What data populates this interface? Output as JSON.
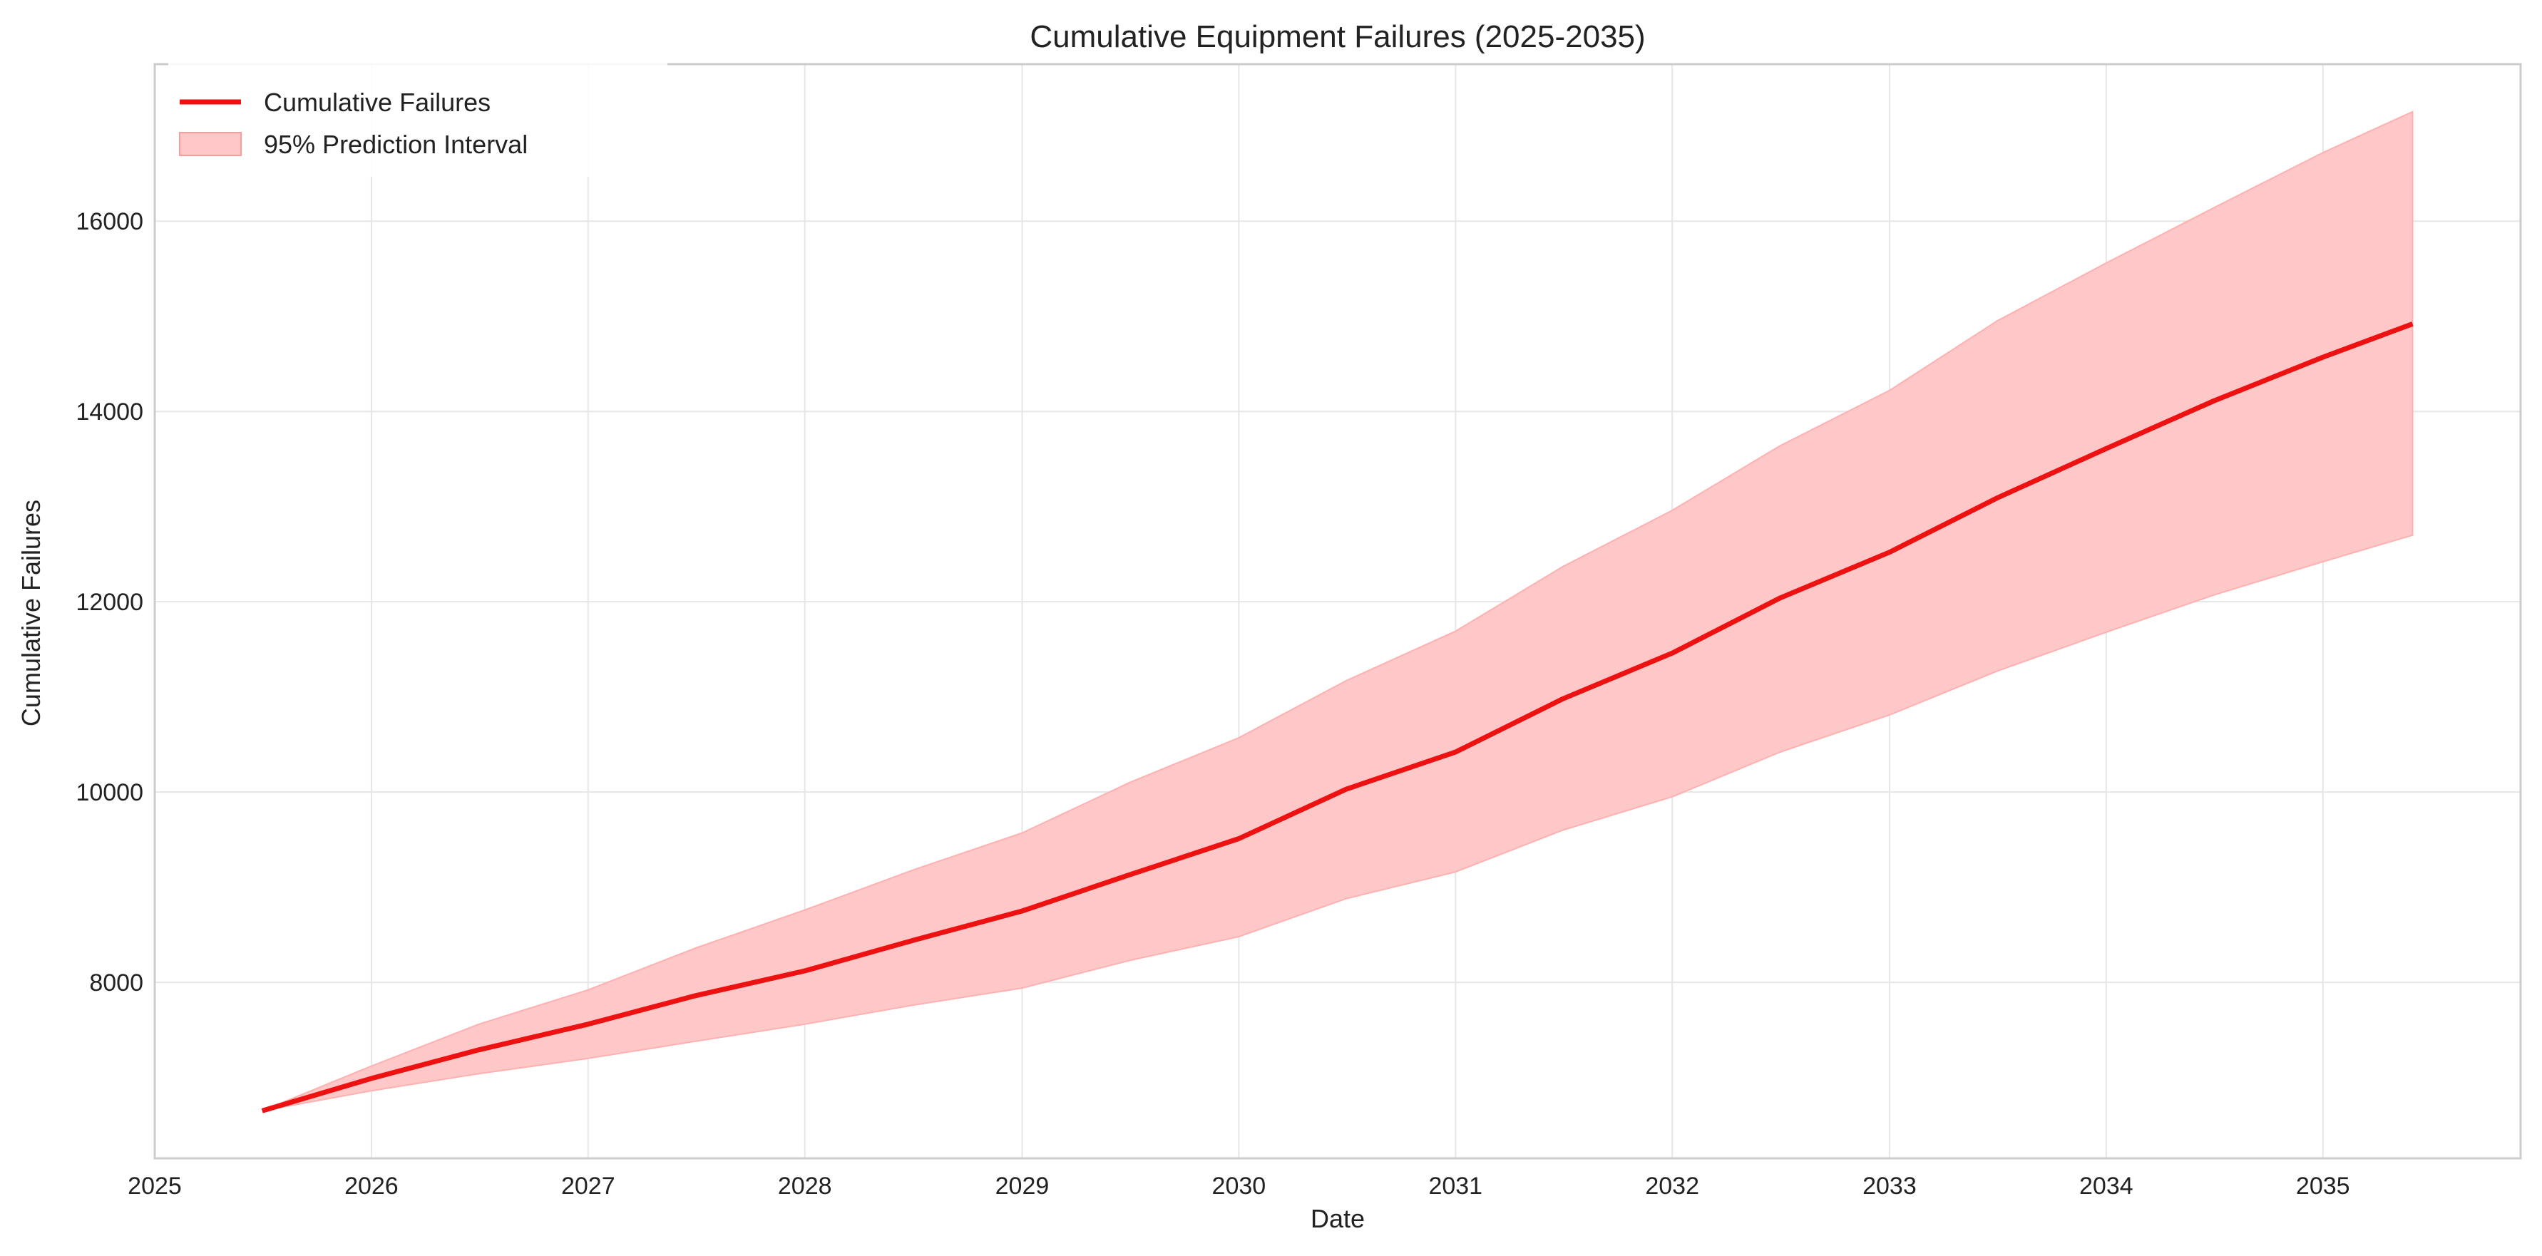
{
  "chart_data": {
    "type": "area",
    "title": "Cumulative Equipment Failures (2025-2035)",
    "xlabel": "Date",
    "ylabel": "Cumulative Failures",
    "xlim": [
      "2025-01-01",
      "2035-11-30"
    ],
    "ylim": [
      6150,
      17650
    ],
    "x_ticks": [
      {
        "label": "2025",
        "date": "2025-01-01"
      },
      {
        "label": "2026",
        "date": "2026-01-01"
      },
      {
        "label": "2027",
        "date": "2027-01-01"
      },
      {
        "label": "2028",
        "date": "2028-01-01"
      },
      {
        "label": "2029",
        "date": "2029-01-01"
      },
      {
        "label": "2030",
        "date": "2030-01-01"
      },
      {
        "label": "2031",
        "date": "2031-01-01"
      },
      {
        "label": "2032",
        "date": "2032-01-01"
      },
      {
        "label": "2033",
        "date": "2033-01-01"
      },
      {
        "label": "2034",
        "date": "2034-01-01"
      },
      {
        "label": "2035",
        "date": "2035-01-01"
      }
    ],
    "y_ticks": [
      8000,
      10000,
      12000,
      14000,
      16000
    ],
    "grid": true,
    "legend_position": "top-left",
    "legend": [
      {
        "label": "Cumulative Failures",
        "kind": "line",
        "color": "#ee1111"
      },
      {
        "label": "95% Prediction Interval",
        "kind": "band",
        "color": "#ffc8c8"
      }
    ],
    "series": [
      {
        "name": "Cumulative Failures",
        "color": "#ee1111",
        "points": [
          [
            "2025-07-01",
            6650
          ],
          [
            "2026-01-01",
            6990
          ],
          [
            "2026-07-01",
            7290
          ],
          [
            "2027-01-01",
            7560
          ],
          [
            "2027-07-01",
            7860
          ],
          [
            "2028-01-01",
            8120
          ],
          [
            "2028-07-01",
            8440
          ],
          [
            "2029-01-01",
            8750
          ],
          [
            "2029-07-01",
            9130
          ],
          [
            "2030-01-01",
            9510
          ],
          [
            "2030-07-01",
            10030
          ],
          [
            "2031-01-01",
            10420
          ],
          [
            "2031-07-01",
            10980
          ],
          [
            "2032-01-01",
            11460
          ],
          [
            "2032-07-01",
            12040
          ],
          [
            "2033-01-01",
            12520
          ],
          [
            "2033-07-01",
            13090
          ],
          [
            "2034-01-01",
            13610
          ],
          [
            "2034-07-01",
            14110
          ],
          [
            "2035-01-01",
            14570
          ],
          [
            "2035-06-01",
            14920
          ]
        ]
      },
      {
        "name": "95% Prediction Interval",
        "color": "#ffc8c8",
        "upper": [
          [
            "2025-07-01",
            6650
          ],
          [
            "2026-01-01",
            7120
          ],
          [
            "2026-07-01",
            7560
          ],
          [
            "2027-01-01",
            7920
          ],
          [
            "2027-07-01",
            8360
          ],
          [
            "2028-01-01",
            8760
          ],
          [
            "2028-07-01",
            9180
          ],
          [
            "2029-01-01",
            9570
          ],
          [
            "2029-07-01",
            10100
          ],
          [
            "2030-01-01",
            10570
          ],
          [
            "2030-07-01",
            11170
          ],
          [
            "2031-01-01",
            11690
          ],
          [
            "2031-07-01",
            12370
          ],
          [
            "2032-01-01",
            12960
          ],
          [
            "2032-07-01",
            13640
          ],
          [
            "2033-01-01",
            14220
          ],
          [
            "2033-07-01",
            14950
          ],
          [
            "2034-01-01",
            15560
          ],
          [
            "2034-07-01",
            16140
          ],
          [
            "2035-01-01",
            16720
          ],
          [
            "2035-06-01",
            17150
          ]
        ],
        "lower": [
          [
            "2025-07-01",
            6650
          ],
          [
            "2026-01-01",
            6860
          ],
          [
            "2026-07-01",
            7040
          ],
          [
            "2027-01-01",
            7200
          ],
          [
            "2027-07-01",
            7380
          ],
          [
            "2028-01-01",
            7560
          ],
          [
            "2028-07-01",
            7760
          ],
          [
            "2029-01-01",
            7940
          ],
          [
            "2029-07-01",
            8230
          ],
          [
            "2030-01-01",
            8480
          ],
          [
            "2030-07-01",
            8880
          ],
          [
            "2031-01-01",
            9160
          ],
          [
            "2031-07-01",
            9600
          ],
          [
            "2032-01-01",
            9950
          ],
          [
            "2032-07-01",
            10420
          ],
          [
            "2033-01-01",
            10810
          ],
          [
            "2033-07-01",
            11270
          ],
          [
            "2034-01-01",
            11680
          ],
          [
            "2034-07-01",
            12070
          ],
          [
            "2035-01-01",
            12420
          ],
          [
            "2035-06-01",
            12700
          ]
        ]
      }
    ]
  }
}
